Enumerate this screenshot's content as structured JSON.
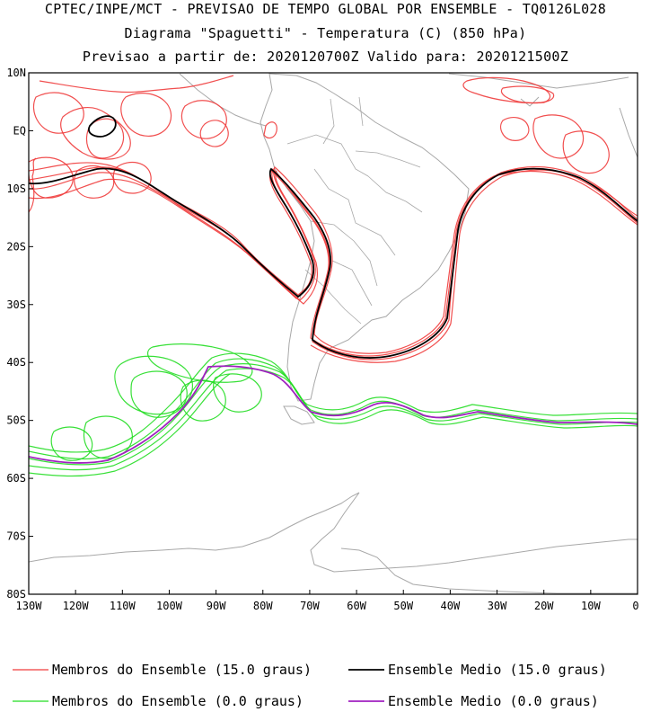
{
  "header": {
    "line1": "CPTEC/INPE/MCT - PREVISAO DE TEMPO GLOBAL POR ENSEMBLE - TQ0126L028",
    "line2": "Diagrama \"Spaguetti\" - Temperatura (C) (850 hPa)",
    "line3": "Previsao a partir de: 2020120700Z  Valido para: 2020121500Z"
  },
  "map": {
    "lat_labels": [
      "10N",
      "EQ",
      "10S",
      "20S",
      "30S",
      "40S",
      "50S",
      "60S",
      "70S",
      "80S"
    ],
    "lon_labels": [
      "130W",
      "120W",
      "110W",
      "100W",
      "90W",
      "80W",
      "70W",
      "60W",
      "50W",
      "40W",
      "30W",
      "20W",
      "10W",
      "0"
    ],
    "lat_range": [
      -80,
      10
    ],
    "lon_range": [
      -130,
      0
    ]
  },
  "legend": {
    "red_members": "Membros do Ensemble (15.0 graus)",
    "black_mean": "Ensemble Medio (15.0 graus)",
    "green_members": "Membros do Ensemble (0.0 graus)",
    "purple_mean": "Ensemble Medio (0.0 graus)"
  },
  "colors": {
    "red_members": "#f03c3c",
    "black_mean": "#000000",
    "green_members": "#22dd22",
    "purple_mean": "#a020c0",
    "coastline": "#a8a8a8"
  }
}
